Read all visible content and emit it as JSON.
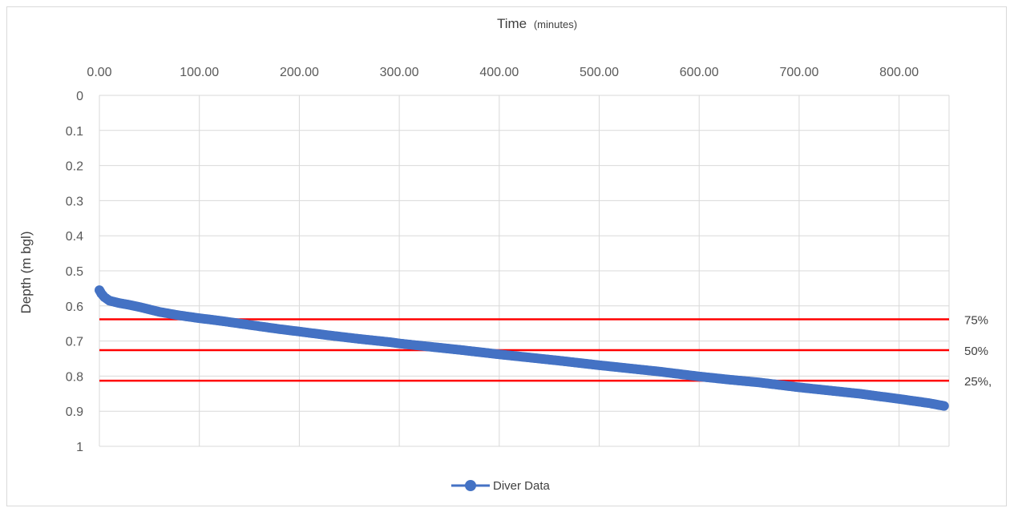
{
  "chart_data": {
    "type": "scatter",
    "title": "",
    "xlabel_main": "Time",
    "xlabel_unit": "(minutes)",
    "ylabel": "Depth (m bgl)",
    "xlim": [
      0,
      850
    ],
    "ylim": [
      0,
      1
    ],
    "y_reversed": true,
    "x_axis_position": "top",
    "grid": true,
    "legend_position": "bottom",
    "x_ticks": [
      "0.00",
      "100.00",
      "200.00",
      "300.00",
      "400.00",
      "500.00",
      "600.00",
      "700.00",
      "800.00"
    ],
    "x_tick_values": [
      0,
      100,
      200,
      300,
      400,
      500,
      600,
      700,
      800
    ],
    "y_ticks": [
      "0",
      "0.1",
      "0.2",
      "0.3",
      "0.4",
      "0.5",
      "0.6",
      "0.7",
      "0.8",
      "0.9",
      "1"
    ],
    "y_tick_values": [
      0,
      0.1,
      0.2,
      0.3,
      0.4,
      0.5,
      0.6,
      0.7,
      0.8,
      0.9,
      1
    ],
    "series": [
      {
        "name": "Diver Data",
        "color": "#4472c4",
        "x": [
          0,
          2,
          5,
          10,
          20,
          30,
          40,
          50,
          60,
          80,
          100,
          120,
          140,
          160,
          180,
          200,
          230,
          260,
          290,
          300,
          330,
          360,
          400,
          430,
          460,
          500,
          530,
          560,
          600,
          630,
          660,
          700,
          730,
          760,
          800,
          830,
          845
        ],
        "y": [
          0.555,
          0.565,
          0.575,
          0.585,
          0.592,
          0.597,
          0.603,
          0.61,
          0.617,
          0.627,
          0.635,
          0.642,
          0.65,
          0.658,
          0.666,
          0.673,
          0.684,
          0.694,
          0.703,
          0.707,
          0.716,
          0.725,
          0.738,
          0.747,
          0.756,
          0.769,
          0.778,
          0.787,
          0.801,
          0.81,
          0.818,
          0.832,
          0.841,
          0.85,
          0.865,
          0.877,
          0.885
        ]
      }
    ],
    "reference_lines": [
      {
        "label": "75%",
        "y": 0.638,
        "color": "#ff0000"
      },
      {
        "label": "50%",
        "y": 0.726,
        "color": "#ff0000"
      },
      {
        "label": "25%,",
        "y": 0.813,
        "color": "#ff0000"
      }
    ]
  }
}
